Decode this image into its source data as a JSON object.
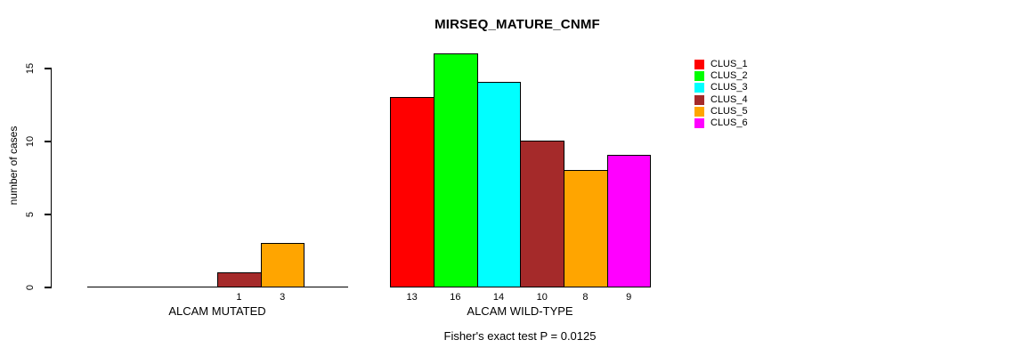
{
  "subtitle": "Fisher's exact test P = 0.0125",
  "chart_data": {
    "type": "bar",
    "title": "MIRSEQ_MATURE_CNMF",
    "xlabel": "",
    "ylabel": "number of cases",
    "sub_label": "Fisher's exact test P = 0.0125",
    "categories": [
      "ALCAM MUTATED",
      "ALCAM WILD-TYPE"
    ],
    "series": [
      {
        "name": "CLUS_1",
        "color": "#FF0000",
        "values": [
          0,
          13
        ]
      },
      {
        "name": "CLUS_2",
        "color": "#00FF00",
        "values": [
          0,
          16
        ]
      },
      {
        "name": "CLUS_3",
        "color": "#00FFFF",
        "values": [
          0,
          14
        ]
      },
      {
        "name": "CLUS_4",
        "color": "#A52A2A",
        "values": [
          1,
          10
        ]
      },
      {
        "name": "CLUS_5",
        "color": "#FFA500",
        "values": [
          3,
          8
        ]
      },
      {
        "name": "CLUS_6",
        "color": "#FF00FF",
        "values": [
          0,
          9
        ]
      }
    ],
    "ylim": [
      0,
      15
    ],
    "yticks": [
      0,
      5,
      10,
      15
    ],
    "grid": false,
    "legend_position": "right",
    "value_labels": "bar value printed below each non-zero bar"
  }
}
